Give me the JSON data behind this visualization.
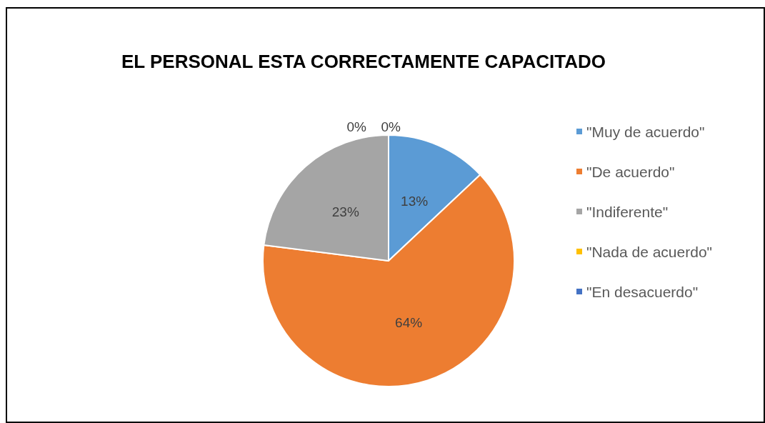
{
  "chart_data": {
    "type": "pie",
    "title": "EL PERSONAL ESTA CORRECTAMENTE CAPACITADO",
    "categories": [
      "\"Muy de acuerdo\"",
      "\"De acuerdo\"",
      "\"Indiferente\"",
      "\"Nada de acuerdo\"",
      "\"En desacuerdo\""
    ],
    "values": [
      13,
      64,
      23,
      0,
      0
    ],
    "colors": [
      "#5b9bd5",
      "#ed7d31",
      "#a5a5a5",
      "#ffc000",
      "#4472c4"
    ],
    "value_labels": [
      "13%",
      "64%",
      "23%",
      "0%",
      "0%"
    ],
    "legend": "right"
  }
}
